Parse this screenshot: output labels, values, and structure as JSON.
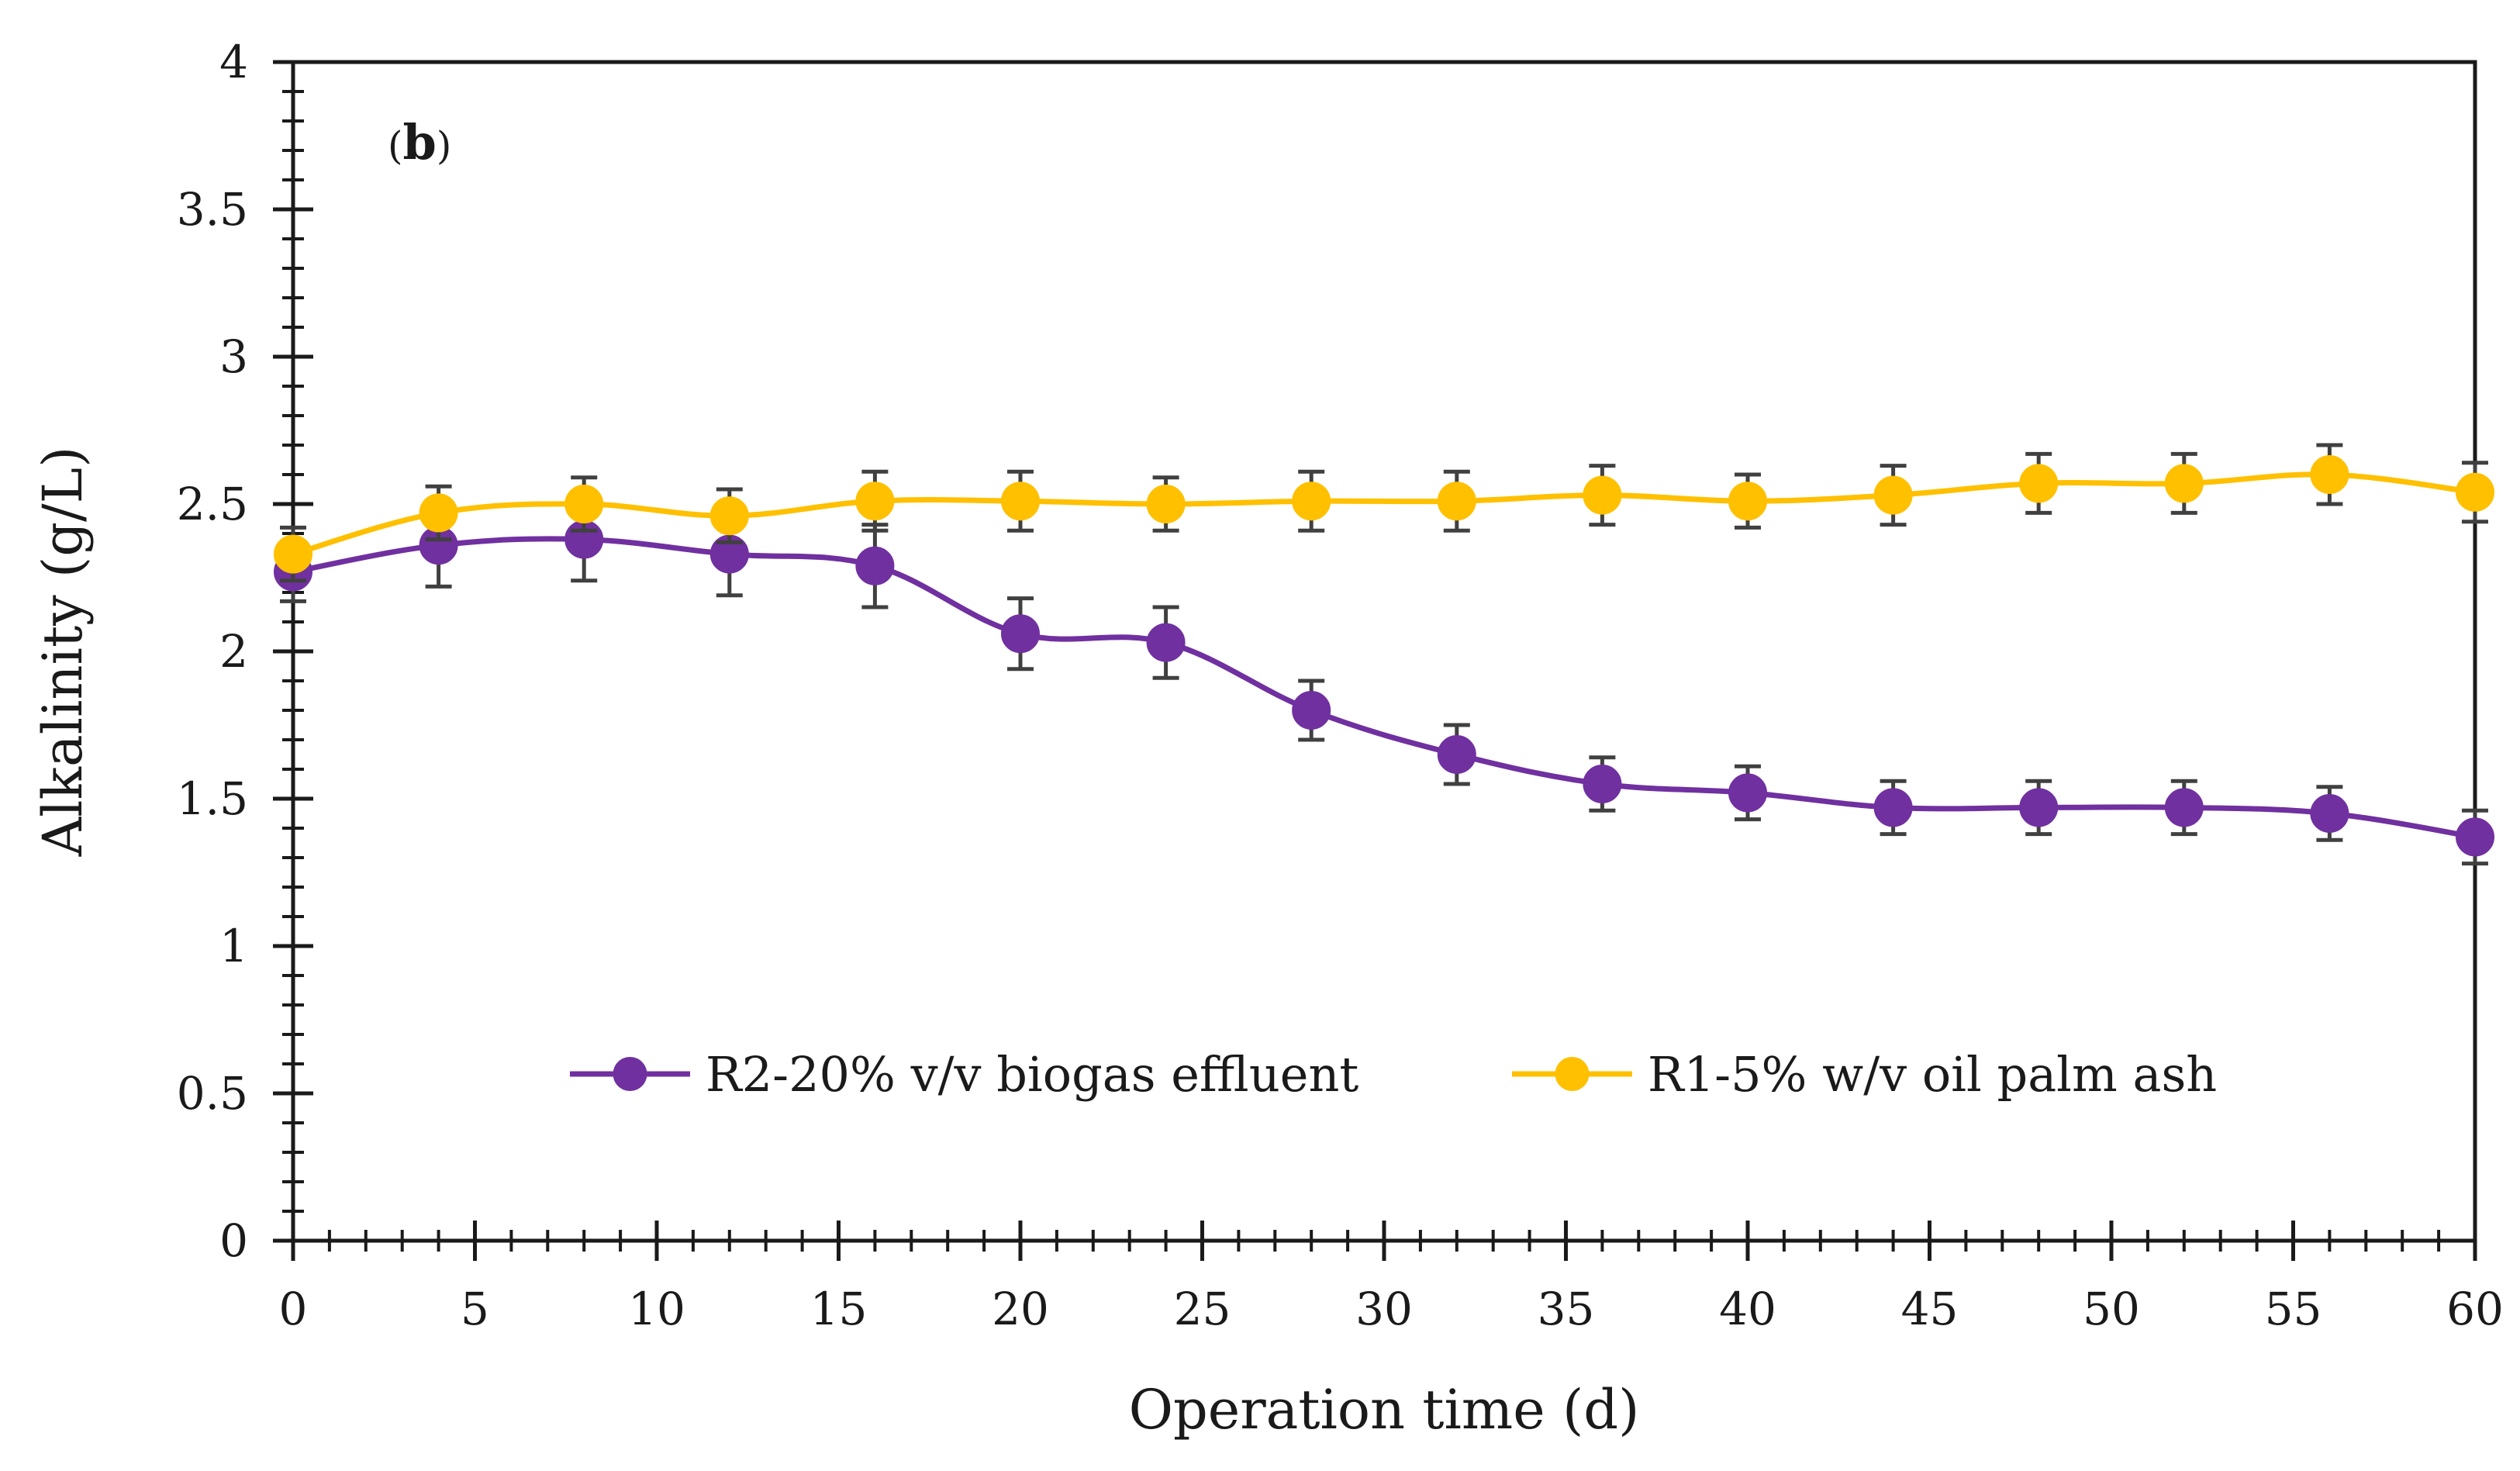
{
  "chart_data": {
    "type": "line",
    "panel_label": "b",
    "xlabel": "Operation time (d)",
    "ylabel": "Alkalinity (g/L)",
    "xlim": [
      0,
      60
    ],
    "ylim": [
      0,
      4
    ],
    "x_major_ticks": [
      0,
      5,
      10,
      15,
      20,
      25,
      30,
      35,
      40,
      45,
      50,
      55,
      60
    ],
    "x_tick_labels": [
      "0",
      "5",
      "10",
      "15",
      "20",
      "25",
      "30",
      "35",
      "40",
      "45",
      "50",
      "55",
      "60"
    ],
    "y_major_ticks": [
      0,
      0.5,
      1,
      1.5,
      2,
      2.5,
      3,
      3.5,
      4
    ],
    "y_tick_labels": [
      "0",
      "0.5",
      "1",
      "1.5",
      "2",
      "2.5",
      "3",
      "3.5",
      "4"
    ],
    "grid": false,
    "legend_position": "bottom-center",
    "x": [
      0,
      4,
      8,
      12,
      16,
      20,
      24,
      28,
      32,
      36,
      40,
      44,
      48,
      52,
      56,
      60
    ],
    "series": [
      {
        "name": "R2-20% v/v biogas effluent",
        "color": "#7030A0",
        "values": [
          2.27,
          2.36,
          2.38,
          2.33,
          2.29,
          2.06,
          2.03,
          1.8,
          1.65,
          1.55,
          1.52,
          1.47,
          1.47,
          1.47,
          1.45,
          1.37
        ],
        "errors": [
          0.1,
          0.14,
          0.14,
          0.14,
          0.14,
          0.12,
          0.12,
          0.1,
          0.1,
          0.09,
          0.09,
          0.09,
          0.09,
          0.09,
          0.09,
          0.09
        ]
      },
      {
        "name": "R1-5% w/v oil palm ash",
        "color": "#FFC000",
        "values": [
          2.33,
          2.47,
          2.5,
          2.46,
          2.51,
          2.51,
          2.5,
          2.51,
          2.51,
          2.53,
          2.51,
          2.53,
          2.57,
          2.57,
          2.6,
          2.54
        ],
        "errors": [
          0.09,
          0.09,
          0.09,
          0.09,
          0.1,
          0.1,
          0.09,
          0.1,
          0.1,
          0.1,
          0.09,
          0.1,
          0.1,
          0.1,
          0.1,
          0.1
        ]
      }
    ]
  }
}
